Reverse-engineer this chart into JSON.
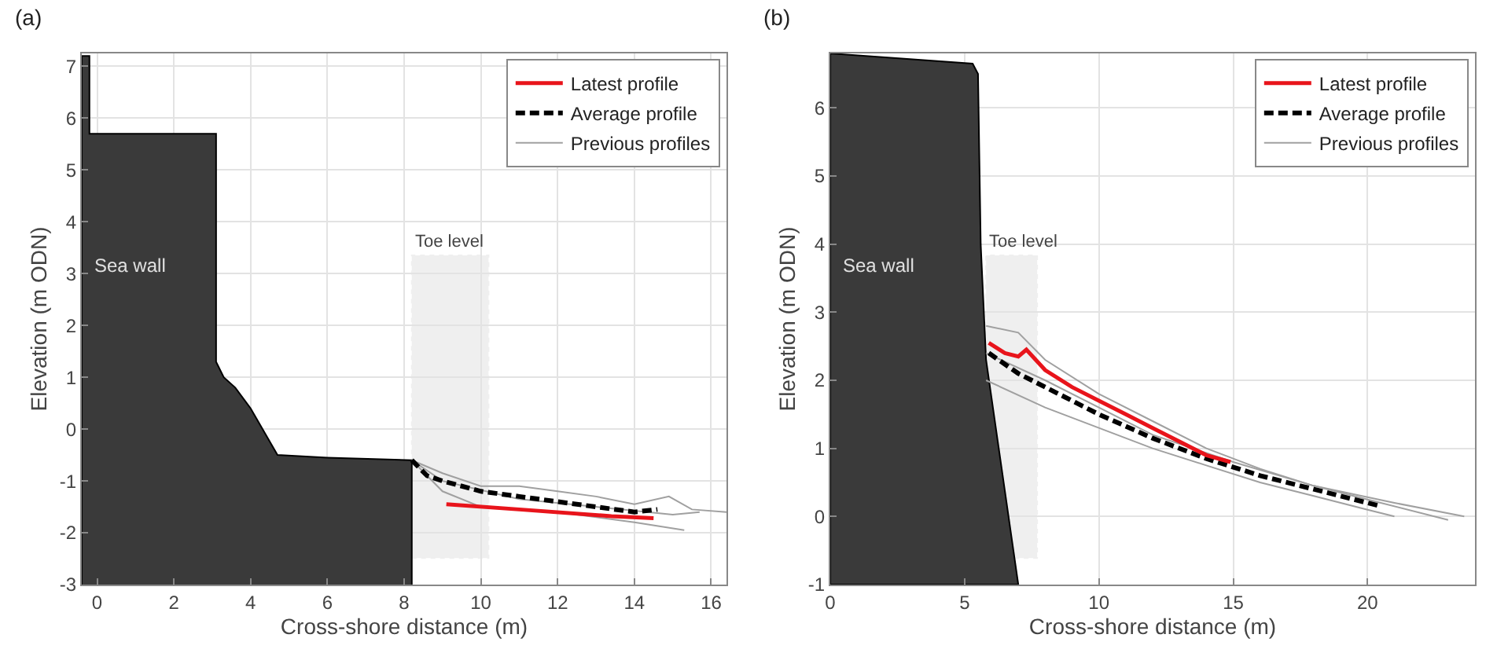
{
  "chart_data": [
    {
      "type": "line",
      "title": "(a)",
      "xlabel": "Cross-shore distance (m)",
      "ylabel": "Elevation (m ODN)",
      "xlim": [
        -0.4,
        16.4
      ],
      "ylim": [
        -3,
        7.25
      ],
      "xticks": [
        0,
        2,
        4,
        6,
        8,
        10,
        12,
        14,
        16
      ],
      "yticks": [
        -3,
        -2,
        -1,
        0,
        1,
        2,
        3,
        4,
        5,
        6,
        7
      ],
      "grid": true,
      "legend": "top right",
      "marker": "none",
      "annotations": [
        "Sea wall"
      ],
      "bands": [
        {
          "axis": "x",
          "from": 8.2,
          "to": 10.2,
          "label": "Toe level",
          "color": "#999999"
        }
      ],
      "series": [
        {
          "type": "area",
          "color": "#3a3a3a",
          "x": [
            -0.4,
            -0.4,
            -0.2,
            -0.2,
            3.1,
            3.1,
            3.3,
            3.6,
            4.0,
            4.7,
            6,
            8.2,
            8.2
          ],
          "values": [
            -3,
            7.2,
            7.2,
            5.7,
            5.7,
            1.3,
            1.0,
            0.8,
            0.4,
            -0.5,
            -0.55,
            -0.6,
            -3
          ]
        },
        {
          "name": "Previous profiles",
          "color": "#a0a0a0",
          "line_style": "solid",
          "x": [
            8.2,
            9,
            10,
            11,
            12,
            13,
            14,
            14.9,
            15.5,
            16.4
          ],
          "values": [
            -0.6,
            -0.85,
            -1.1,
            -1.1,
            -1.2,
            -1.3,
            -1.45,
            -1.3,
            -1.55,
            -1.6
          ]
        },
        {
          "color": "#a0a0a0",
          "line_style": "solid",
          "x": [
            8.2,
            9,
            10,
            12,
            14,
            15.3
          ],
          "values": [
            -0.6,
            -1.2,
            -1.5,
            -1.6,
            -1.8,
            -1.95
          ]
        },
        {
          "color": "#a0a0a0",
          "line_style": "solid",
          "x": [
            8.2,
            9,
            11,
            13,
            15,
            15.7
          ],
          "values": [
            -0.6,
            -1.0,
            -1.35,
            -1.5,
            -1.65,
            -1.6
          ]
        },
        {
          "name": "Average profile",
          "color": "#000000",
          "line_style": "dashed",
          "x": [
            8.2,
            8.6,
            9,
            10,
            11,
            12,
            13,
            14,
            14.6
          ],
          "values": [
            -0.6,
            -0.9,
            -1.0,
            -1.2,
            -1.3,
            -1.4,
            -1.5,
            -1.6,
            -1.55
          ]
        },
        {
          "name": "Latest profile",
          "color": "#e8141b",
          "line_style": "solid",
          "x": [
            9.1,
            11,
            13.4,
            14.5
          ],
          "values": [
            -1.45,
            -1.55,
            -1.68,
            -1.72
          ]
        }
      ]
    },
    {
      "type": "line",
      "title": "(b)",
      "xlabel": "Cross-shore distance (m)",
      "ylabel": "Elevation (m ODN)",
      "xlim": [
        0,
        24
      ],
      "ylim": [
        -1,
        6.8
      ],
      "xticks": [
        0,
        5,
        10,
        15,
        20
      ],
      "yticks": [
        -1,
        0,
        1,
        2,
        3,
        4,
        5,
        6
      ],
      "grid": true,
      "legend": "top right",
      "marker": "none",
      "annotations": [
        "Sea wall"
      ],
      "bands": [
        {
          "axis": "x",
          "from": 5.8,
          "to": 7.7,
          "label": "Toe level",
          "color": "#999999"
        }
      ],
      "series": [
        {
          "type": "area",
          "color": "#3a3a3a",
          "x": [
            0,
            0,
            5.3,
            5.5,
            5.6,
            5.8,
            7,
            0
          ],
          "values": [
            -1,
            6.8,
            6.65,
            6.5,
            4,
            2.3,
            -1,
            -1
          ]
        },
        {
          "name": "Previous profiles",
          "color": "#a0a0a0",
          "line_style": "solid",
          "x": [
            5.8,
            7,
            8,
            10,
            12,
            14,
            16,
            18,
            21,
            23.6
          ],
          "values": [
            2.8,
            2.7,
            2.3,
            1.8,
            1.4,
            1.0,
            0.7,
            0.45,
            0.2,
            0.0
          ]
        },
        {
          "color": "#a0a0a0",
          "line_style": "solid",
          "x": [
            5.8,
            8,
            10,
            12,
            14,
            16,
            18,
            20,
            21
          ],
          "values": [
            2.0,
            1.6,
            1.3,
            1.0,
            0.75,
            0.5,
            0.3,
            0.1,
            0.0
          ]
        },
        {
          "color": "#a0a0a0",
          "line_style": "solid",
          "x": [
            5.8,
            8,
            10,
            12,
            15,
            18,
            20,
            23
          ],
          "values": [
            2.4,
            2.0,
            1.6,
            1.2,
            0.8,
            0.45,
            0.25,
            -0.05
          ]
        },
        {
          "name": "Average profile",
          "color": "#000000",
          "line_style": "dashed",
          "x": [
            5.9,
            7,
            8,
            10,
            12,
            14,
            16,
            18,
            20.5
          ],
          "values": [
            2.4,
            2.1,
            1.9,
            1.5,
            1.15,
            0.85,
            0.6,
            0.4,
            0.15
          ]
        },
        {
          "name": "Latest profile",
          "color": "#e8141b",
          "line_style": "solid",
          "x": [
            5.9,
            6.5,
            7.0,
            7.3,
            8,
            9,
            10,
            11,
            12,
            13,
            14,
            14.9
          ],
          "values": [
            2.55,
            2.4,
            2.35,
            2.45,
            2.15,
            1.9,
            1.7,
            1.5,
            1.3,
            1.1,
            0.9,
            0.8
          ]
        }
      ]
    }
  ]
}
